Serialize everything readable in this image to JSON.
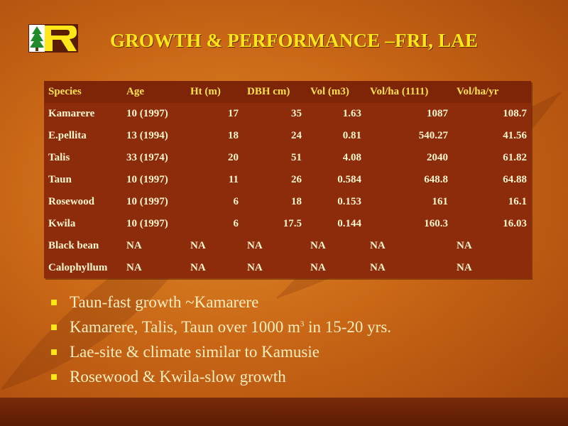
{
  "slide": {
    "title": "GROWTH & PERFORMANCE –FRI, LAE"
  },
  "table": {
    "headers": [
      "Species",
      "Age",
      "Ht (m)",
      "DBH cm)",
      "Vol (m3)",
      "Vol/ha (1111)",
      "Vol/ha/yr"
    ],
    "rows": [
      [
        "Kamarere",
        "10 (1997)",
        "17",
        "35",
        "1.63",
        "1087",
        "108.7"
      ],
      [
        "E.pellita",
        "13 (1994)",
        "18",
        "24",
        "0.81",
        "540.27",
        "41.56"
      ],
      [
        "Talis",
        "33 (1974)",
        "20",
        "51",
        "4.08",
        "2040",
        "61.82"
      ],
      [
        "Taun",
        "10 (1997)",
        "11",
        "26",
        "0.584",
        "648.8",
        "64.88"
      ],
      [
        "Rosewood",
        "10 (1997)",
        "6",
        "18",
        "0.153",
        "161",
        "16.1"
      ],
      [
        "Kwila",
        "10 (1997)",
        "6",
        "17.5",
        "0.144",
        "160.3",
        "16.03"
      ],
      [
        "Black bean",
        "NA",
        "NA",
        "NA",
        "NA",
        "NA",
        "NA"
      ],
      [
        "Calophyllum",
        "NA",
        "NA",
        "NA",
        "NA",
        "NA",
        "NA"
      ]
    ]
  },
  "bullets": {
    "b1": "Taun-fast growth ~Kamarere",
    "b2_pre": "Kamarere, Talis, Taun over 1000 m",
    "b2_sup": "3",
    "b2_post": " in 15-20 yrs.",
    "b3": "Lae-site & climate similar to Kamusie",
    "b4": "Rosewood & Kwila-slow growth"
  },
  "colors": {
    "title": "#ffe619",
    "table_bg": "#8c2c0a",
    "background": "#c96716"
  }
}
